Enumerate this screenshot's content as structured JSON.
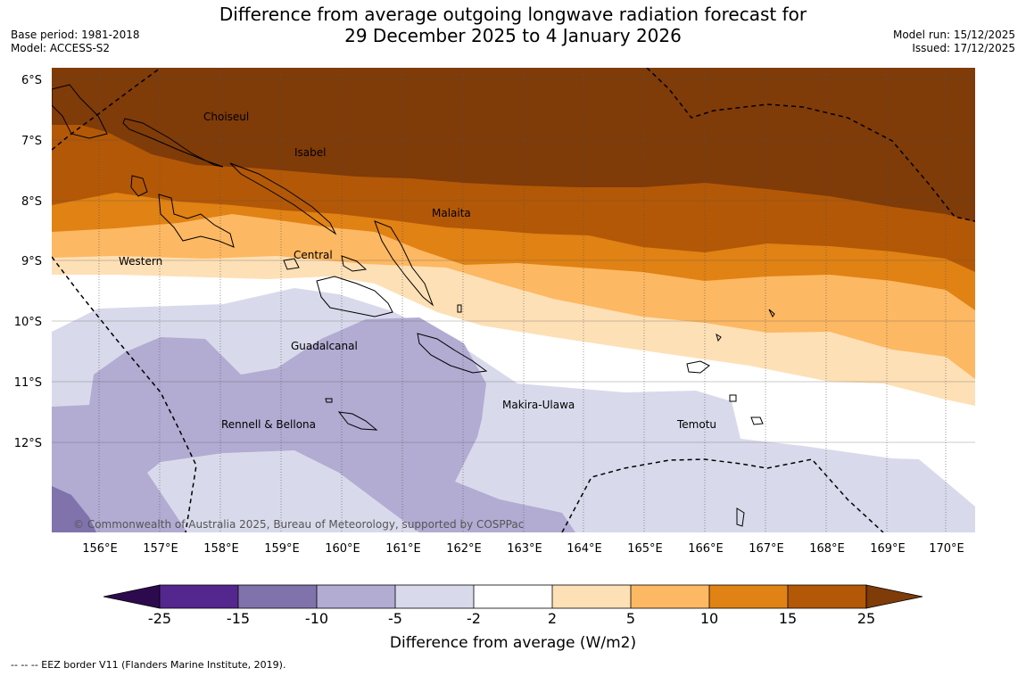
{
  "header": {
    "title_line1": "Difference from average outgoing longwave radiation forecast for",
    "title_line2": "29 December 2025 to 4 January 2026",
    "base_period": "Base period: 1981-2018",
    "model": "Model: ACCESS-S2",
    "model_run": "Model run: 15/12/2025",
    "issued": "Issued: 17/12/2025"
  },
  "map": {
    "lat_labels": [
      "6°S",
      "7°S",
      "8°S",
      "9°S",
      "10°S",
      "11°S",
      "12°S"
    ],
    "lon_labels": [
      "156°E",
      "157°E",
      "158°E",
      "159°E",
      "160°E",
      "161°E",
      "162°E",
      "163°E",
      "164°E",
      "165°E",
      "166°E",
      "167°E",
      "168°E",
      "169°E",
      "170°E"
    ],
    "provinces": {
      "choiseul": "Choiseul",
      "isabel": "Isabel",
      "malaita": "Malaita",
      "western": "Western",
      "central": "Central",
      "guadalcanal": "Guadalcanal",
      "makira": "Makira-Ulawa",
      "rennell": "Rennell & Bellona",
      "temotu": "Temotu"
    },
    "copyright": "© Commonwealth of Australia 2025, Bureau of Meteorology, supported by COSPPac"
  },
  "colorbar": {
    "title": "Difference from average (W/m2)",
    "ticks": [
      "-25",
      "-15",
      "-10",
      "-5",
      "-2",
      "2",
      "5",
      "10",
      "15",
      "25"
    ],
    "colors": {
      "under": "#2d0a4e",
      "c1": "#54278f",
      "c2": "#8073ac",
      "c3": "#b2abd2",
      "c4": "#d8daeb",
      "c5": "#ffffff",
      "c6": "#fee0b6",
      "c7": "#fdb863",
      "c8": "#e08214",
      "c9": "#b35806",
      "over": "#7f3b08"
    }
  },
  "footer": {
    "eez_note": "--  --  -- EEZ border V11 (Flanders Marine Institute, 2019)."
  }
}
